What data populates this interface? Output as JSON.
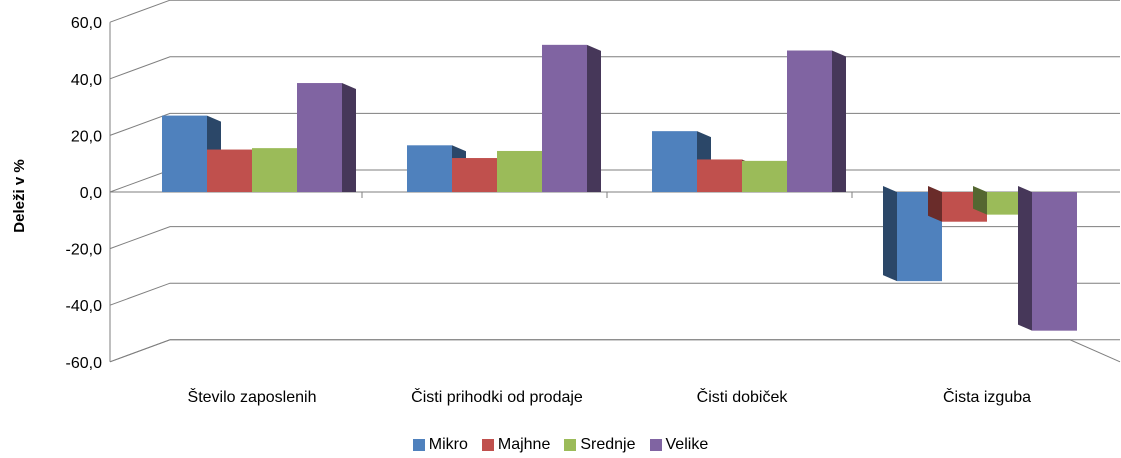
{
  "chart_data": {
    "type": "bar",
    "ylabel": "Deleži v %",
    "ylim": [
      -60,
      60
    ],
    "yticks": [
      "60,0",
      "40,0",
      "20,0",
      "0,0",
      "-20,0",
      "-40,0",
      "-60,0"
    ],
    "categories": [
      "Število zaposlenih",
      "Čisti prihodki od prodaje",
      "Čisti dobiček",
      "Čista izguba"
    ],
    "series": [
      {
        "name": "Mikro",
        "color": "#4F81BD",
        "values": [
          27,
          16.5,
          21.5,
          -31.5
        ]
      },
      {
        "name": "Majhne",
        "color": "#C0504D",
        "values": [
          15,
          12,
          11.5,
          -10.5
        ]
      },
      {
        "name": "Srednje",
        "color": "#9BBB59",
        "values": [
          15.5,
          14.5,
          11,
          -8
        ]
      },
      {
        "name": "Velike",
        "color": "#8064A2",
        "values": [
          38.5,
          52,
          50,
          -49
        ]
      }
    ],
    "legend_position": "bottom",
    "grid": true
  }
}
